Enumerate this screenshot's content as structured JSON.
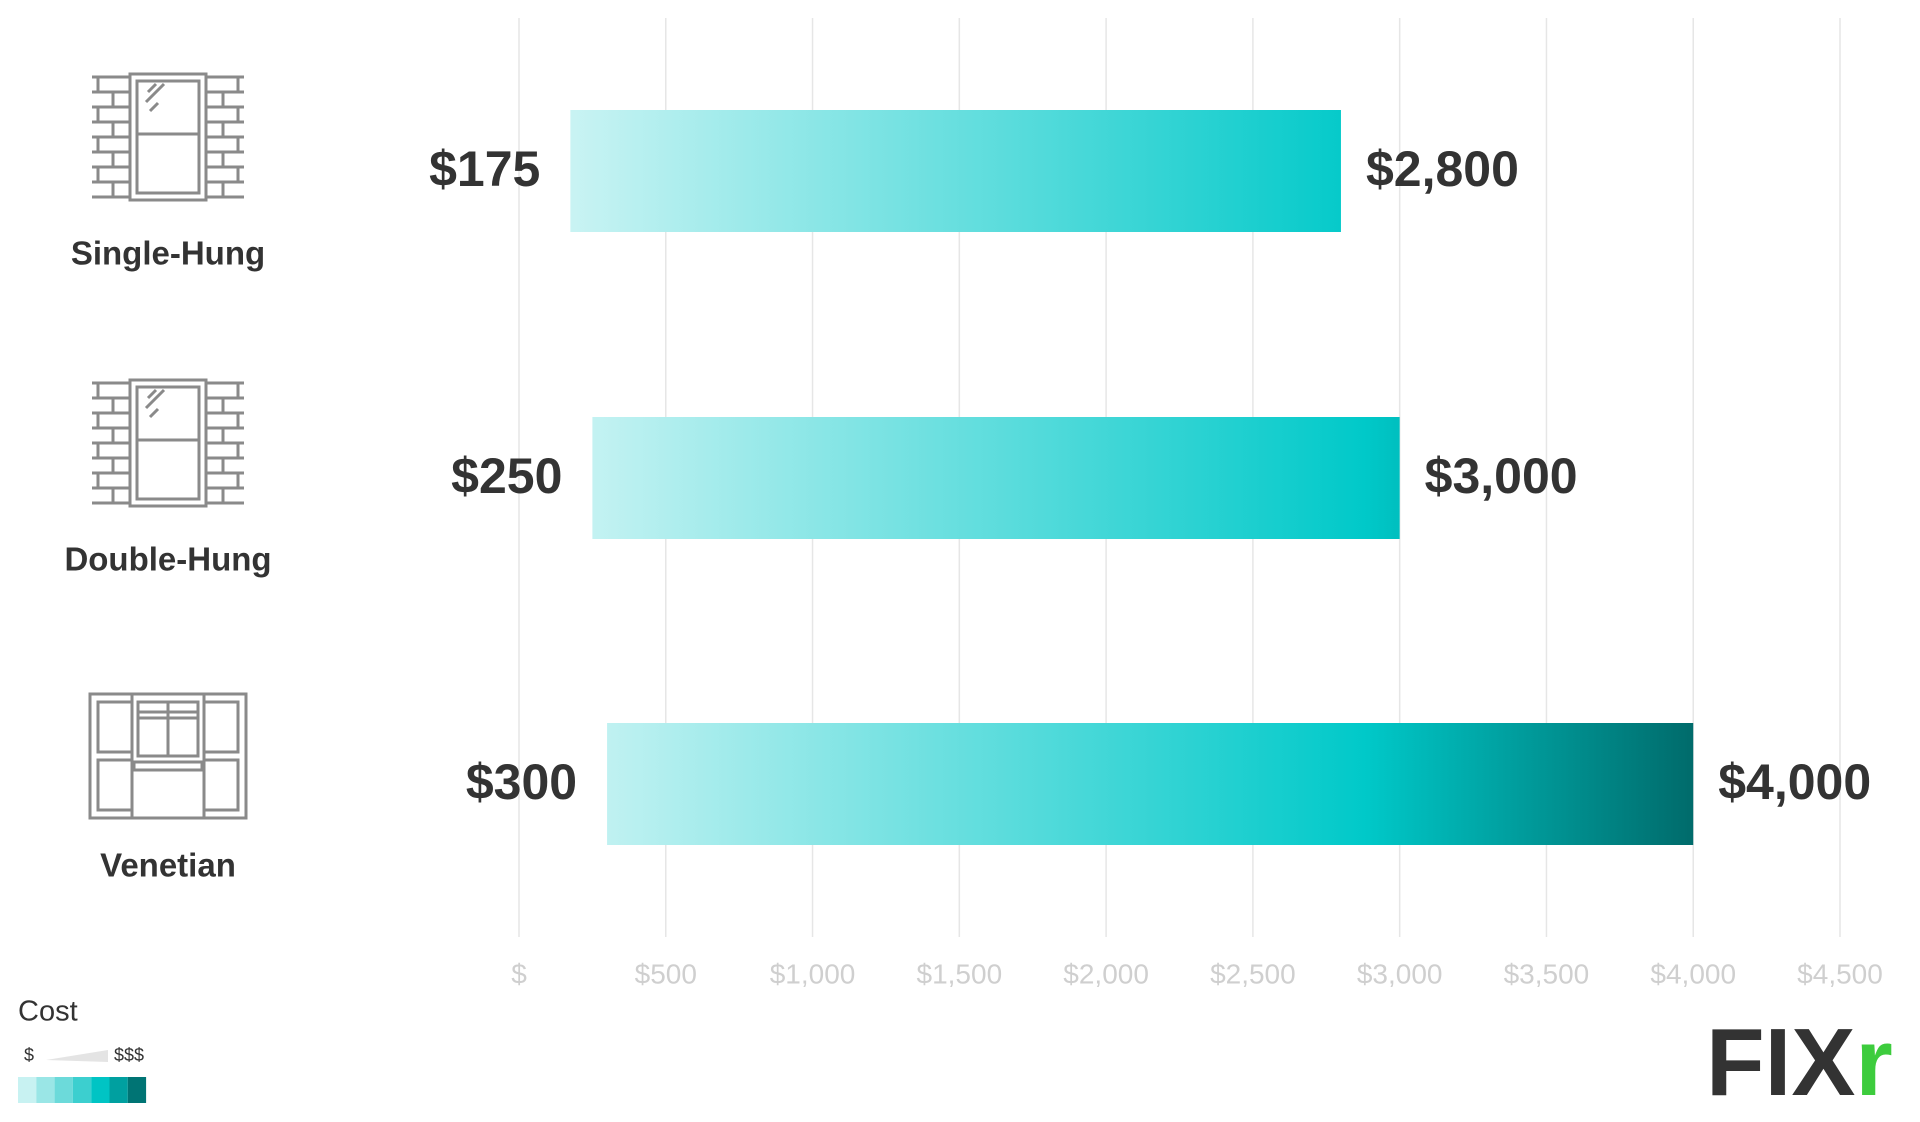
{
  "chart_data": {
    "type": "range-bar",
    "categories": [
      "Single-Hung",
      "Double-Hung",
      "Venetian"
    ],
    "series": [
      {
        "values": [
          175,
          250,
          300
        ],
        "value_labels": [
          "$175",
          "$250",
          "$300"
        ]
      },
      {
        "values": [
          2800,
          3000,
          4000
        ],
        "value_labels": [
          "$2,800",
          "$3,000",
          "$4,000"
        ]
      }
    ],
    "xlim": [
      0,
      4500
    ],
    "xticks": [
      {
        "value": 0,
        "label": "$"
      },
      {
        "value": 500,
        "label": "$500"
      },
      {
        "value": 1000,
        "label": "$1,000"
      },
      {
        "value": 1500,
        "label": "$1,500"
      },
      {
        "value": 2000,
        "label": "$2,000"
      },
      {
        "value": 2500,
        "label": "$2,500"
      },
      {
        "value": 3000,
        "label": "$3,000"
      },
      {
        "value": 3500,
        "label": "$3,500"
      },
      {
        "value": 4000,
        "label": "$4,000"
      },
      {
        "value": 4500,
        "label": "$4,500"
      }
    ],
    "grid": true,
    "gradient": [
      "#d6f6f6",
      "#00c9c9",
      "#006b6b"
    ],
    "legend": {
      "title": "Cost",
      "low": "$",
      "high": "$$$",
      "colors": [
        "#c8f2f2",
        "#9ae6e6",
        "#6cdada",
        "#3ccfcf",
        "#00c4c4",
        "#00a0a0",
        "#007474"
      ]
    },
    "logo": [
      "FIX",
      "r"
    ]
  }
}
